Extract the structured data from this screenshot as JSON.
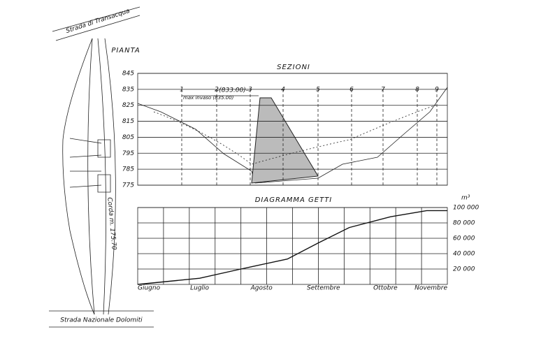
{
  "plan": {
    "title": "PIANTA",
    "road_top": "Strada di Transacqua",
    "road_bottom": "Strada Nazionale Dolomiti",
    "chord": "Corda m. 175.70"
  },
  "sections": {
    "title": "SEZIONI",
    "ylim": [
      775,
      845
    ],
    "yticks": [
      845,
      835,
      825,
      815,
      805,
      795,
      785,
      775
    ],
    "numbers": [
      "1",
      "2",
      "3",
      "4",
      "5",
      "6",
      "7",
      "8",
      "9"
    ],
    "level_label": "-(833.00)-",
    "max_label": "max invaso (835.00)"
  },
  "diagram": {
    "title": "DIAGRAMMA GETTI",
    "unit": "m³",
    "months": [
      "Giugno",
      "Luglio",
      "Agosto",
      "Settembre",
      "Ottobre",
      "Novembre"
    ],
    "xlim": [
      0,
      6
    ],
    "ylim": [
      0,
      100000
    ],
    "yticks": [
      {
        "value": 20000,
        "label": "20 000"
      },
      {
        "value": 40000,
        "label": "40 000"
      },
      {
        "value": 60000,
        "label": "60 000"
      },
      {
        "value": 80000,
        "label": "80 000"
      },
      {
        "value": 100000,
        "label": "100 000"
      }
    ],
    "x": [
      0,
      1.2,
      2,
      2.9,
      3.5,
      4.1,
      4.9,
      5.6,
      6
    ],
    "values": [
      0,
      8000,
      20000,
      33000,
      54000,
      74000,
      88000,
      96000,
      96000
    ]
  }
}
